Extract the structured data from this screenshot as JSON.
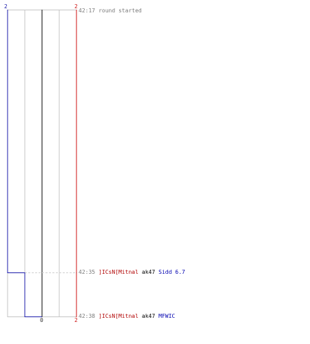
{
  "scores": {
    "blue_top": "2",
    "red_top": "2",
    "red_bottom": "2",
    "center_bottom": "0"
  },
  "colors": {
    "blue_line": "#1a1aaa",
    "red_line": "#cc1111",
    "grid_line": "#c4c4c4",
    "center_line": "#555555",
    "dash_line": "#cfcfcf",
    "timestamp": "#7a7a7a",
    "killer_team": "#b00000",
    "victim_team": "#0000b0"
  },
  "log": {
    "start": {
      "time": "42:17",
      "text": "round started"
    },
    "kills": [
      {
        "time": "42:35",
        "killer": "]ICsN[Mitnal",
        "weapon": "ak47",
        "victim": "Sidd 6.7"
      },
      {
        "time": "42:38",
        "killer": "]ICsN[Mitnal",
        "weapon": "ak47",
        "victim": "MFWIC"
      }
    ]
  }
}
